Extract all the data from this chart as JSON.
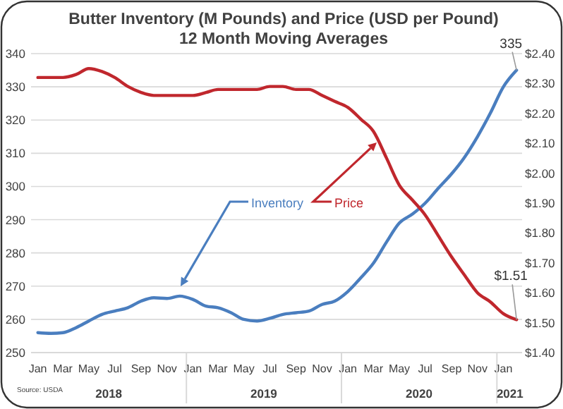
{
  "chart_data": {
    "type": "line",
    "title": "Butter Inventory (M Pounds) and Price (USD per Pound)",
    "subtitle": "12 Month Moving Averages",
    "annotations": [
      "Source: USDA",
      "2018",
      "2019",
      "2020",
      "2021"
    ],
    "x": [
      "2018-01",
      "2018-02",
      "2018-03",
      "2018-04",
      "2018-05",
      "2018-06",
      "2018-07",
      "2018-08",
      "2018-09",
      "2018-10",
      "2018-11",
      "2018-12",
      "2019-01",
      "2019-02",
      "2019-03",
      "2019-04",
      "2019-05",
      "2019-06",
      "2019-07",
      "2019-08",
      "2019-09",
      "2019-10",
      "2019-11",
      "2019-12",
      "2020-01",
      "2020-02",
      "2020-03",
      "2020-04",
      "2020-05",
      "2020-06",
      "2020-07",
      "2020-08",
      "2020-09",
      "2020-10",
      "2020-11",
      "2020-12",
      "2021-01",
      "2021-02"
    ],
    "xlim": [
      "2017-12-16",
      "2021-02-14"
    ],
    "xticks": [
      {
        "value": "2018-01",
        "label": "Jan"
      },
      {
        "value": "2018-03",
        "label": "Mar"
      },
      {
        "value": "2018-05",
        "label": "May"
      },
      {
        "value": "2018-07",
        "label": "Jul"
      },
      {
        "value": "2018-09",
        "label": "Sep"
      },
      {
        "value": "2018-11",
        "label": "Nov"
      },
      {
        "value": "2019-01",
        "label": "Jan"
      },
      {
        "value": "2019-03",
        "label": "Mar"
      },
      {
        "value": "2019-05",
        "label": "May"
      },
      {
        "value": "2019-07",
        "label": "Jul"
      },
      {
        "value": "2019-09",
        "label": "Sep"
      },
      {
        "value": "2019-11",
        "label": "Nov"
      },
      {
        "value": "2020-01",
        "label": "Jan"
      },
      {
        "value": "2020-03",
        "label": "Mar"
      },
      {
        "value": "2020-05",
        "label": "May"
      },
      {
        "value": "2020-07",
        "label": "Jul"
      },
      {
        "value": "2020-09",
        "label": "Sep"
      },
      {
        "value": "2020-11",
        "label": "Nov"
      },
      {
        "value": "2021-01",
        "label": "Jan"
      }
    ],
    "ylim": [
      250,
      340
    ],
    "yticks": [
      250,
      260,
      270,
      280,
      290,
      300,
      310,
      320,
      330,
      340
    ],
    "y2lim": [
      1.4,
      2.4
    ],
    "y2ticks": [
      {
        "value": 1.4,
        "label": "$1.40"
      },
      {
        "value": 1.5,
        "label": "$1.50"
      },
      {
        "value": 1.6,
        "label": "$1.60"
      },
      {
        "value": 1.7,
        "label": "$1.70"
      },
      {
        "value": 1.8,
        "label": "$1.80"
      },
      {
        "value": 1.9,
        "label": "$1.90"
      },
      {
        "value": 2.0,
        "label": "$2.00"
      },
      {
        "value": 2.1,
        "label": "$2.10"
      },
      {
        "value": 2.2,
        "label": "$2.20"
      },
      {
        "value": 2.3,
        "label": "$2.30"
      },
      {
        "value": 2.4,
        "label": "$2.40"
      }
    ],
    "grid": "y",
    "series": [
      {
        "name": "Inventory",
        "color": "#4a7ebf",
        "values": [
          256,
          255.8,
          256,
          257.5,
          259.5,
          261.5,
          262.5,
          263.5,
          265.5,
          266.5,
          266.3,
          267,
          266,
          264,
          263.5,
          262,
          260,
          259.5,
          260.3,
          261.5,
          262,
          262.5,
          264.5,
          265.5,
          268.4,
          272.6,
          276.9,
          283.3,
          289,
          291.7,
          295,
          299.5,
          303.8,
          308.7,
          315,
          322,
          330,
          335
        ],
        "value_labels": [
          null,
          null,
          null,
          null,
          null,
          null,
          null,
          null,
          null,
          null,
          null,
          null,
          null,
          null,
          null,
          null,
          null,
          null,
          null,
          null,
          null,
          null,
          null,
          null,
          null,
          null,
          null,
          null,
          null,
          null,
          null,
          null,
          null,
          null,
          null,
          null,
          null,
          "335"
        ]
      },
      {
        "name": "Price",
        "color": "#c0272d",
        "axis": "y2",
        "values": [
          2.32,
          2.32,
          2.32,
          2.33,
          2.35,
          2.34,
          2.32,
          2.29,
          2.27,
          2.26,
          2.26,
          2.26,
          2.26,
          2.27,
          2.28,
          2.28,
          2.28,
          2.28,
          2.29,
          2.29,
          2.28,
          2.28,
          2.26,
          2.24,
          2.22,
          2.18,
          2.14,
          2.05,
          1.96,
          1.91,
          1.86,
          1.79,
          1.72,
          1.66,
          1.6,
          1.57,
          1.53,
          1.51
        ],
        "value_labels": [
          null,
          null,
          null,
          null,
          null,
          null,
          null,
          null,
          null,
          null,
          null,
          null,
          null,
          null,
          null,
          null,
          null,
          null,
          null,
          null,
          null,
          null,
          null,
          null,
          null,
          null,
          null,
          null,
          null,
          null,
          null,
          null,
          null,
          null,
          null,
          null,
          null,
          "$1.51"
        ]
      }
    ]
  }
}
